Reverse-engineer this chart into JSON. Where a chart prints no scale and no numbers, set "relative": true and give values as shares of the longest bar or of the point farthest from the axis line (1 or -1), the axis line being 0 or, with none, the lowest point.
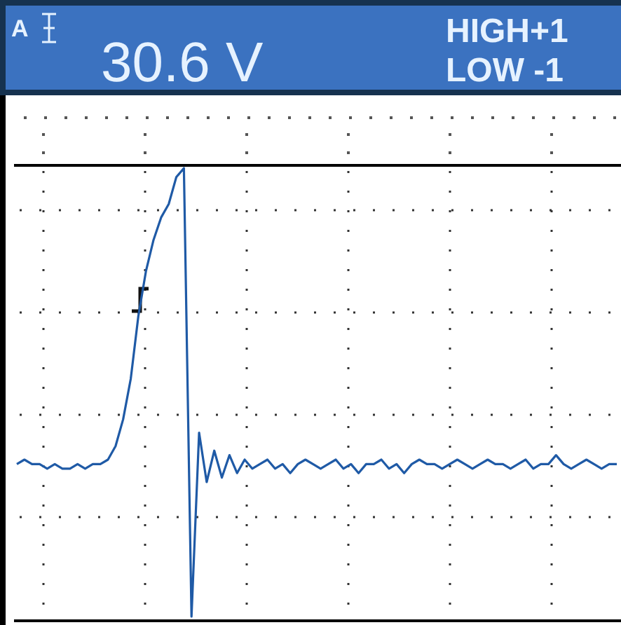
{
  "chart_data": {
    "type": "line",
    "relative": true,
    "title": "30.6 V",
    "annotations": [
      "A",
      "HIGH+1",
      "LOW -1"
    ],
    "grid": true,
    "line_style": "solid",
    "categories": [
      null,
      null,
      null,
      null,
      null,
      null,
      null,
      null,
      null,
      null,
      null,
      null,
      null,
      null,
      null,
      null,
      null,
      null,
      null,
      null,
      null,
      null,
      null,
      null,
      null,
      null,
      null,
      null,
      null,
      null,
      null,
      null,
      null,
      null,
      null,
      null,
      null,
      null,
      null,
      null,
      null,
      null,
      null,
      null,
      null,
      null,
      null,
      null,
      null,
      null,
      null,
      null,
      null,
      null,
      null,
      null,
      null,
      null,
      null,
      null,
      null,
      null,
      null,
      null,
      null,
      null,
      null,
      null,
      null,
      null,
      null,
      null,
      null,
      null,
      null,
      null,
      null,
      null,
      null,
      null
    ],
    "series": [
      {
        "color": "#1f5aa6",
        "values": [
          0.34,
          0.35,
          0.34,
          0.34,
          0.33,
          0.34,
          0.33,
          0.33,
          0.34,
          0.33,
          0.34,
          0.34,
          0.35,
          0.38,
          0.44,
          0.53,
          0.67,
          0.77,
          0.84,
          0.89,
          0.92,
          0.98,
          1.0,
          0.0,
          0.41,
          0.3,
          0.37,
          0.31,
          0.36,
          0.32,
          0.35,
          0.33,
          0.34,
          0.35,
          0.33,
          0.34,
          0.32,
          0.34,
          0.35,
          0.34,
          0.33,
          0.34,
          0.35,
          0.33,
          0.34,
          0.32,
          0.34,
          0.34,
          0.35,
          0.33,
          0.34,
          0.32,
          0.34,
          0.35,
          0.34,
          0.34,
          0.33,
          0.34,
          0.35,
          0.34,
          0.33,
          0.34,
          0.35,
          0.34,
          0.34,
          0.33,
          0.34,
          0.35,
          0.33,
          0.34,
          0.34,
          0.36,
          0.34,
          0.33,
          0.34,
          0.35,
          0.34,
          0.33,
          0.34,
          0.34
        ]
      }
    ]
  }
}
